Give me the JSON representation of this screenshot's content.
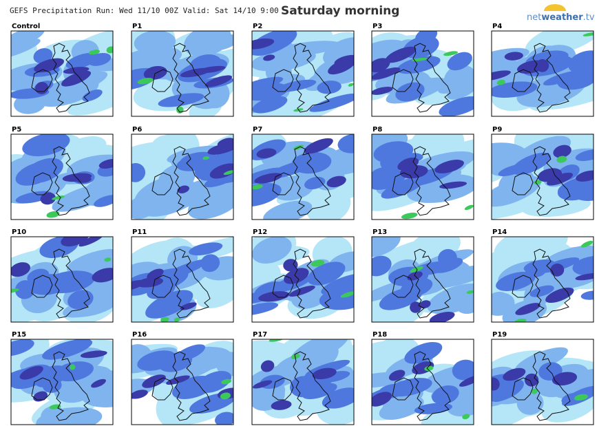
{
  "header": {
    "run_info": "GEFS Precipitation Run: Wed 11/10 00Z Valid: Sat 14/10 9:00",
    "title": "Saturday morning",
    "logo": [
      "net",
      "weather",
      ".tv"
    ]
  },
  "panels": [
    "Control",
    "P1",
    "P2",
    "P3",
    "P4",
    "P5",
    "P6",
    "P7",
    "P8",
    "P9",
    "P10",
    "P11",
    "P12",
    "P13",
    "P14",
    "P15",
    "P16",
    "P17",
    "P18",
    "P19"
  ]
}
